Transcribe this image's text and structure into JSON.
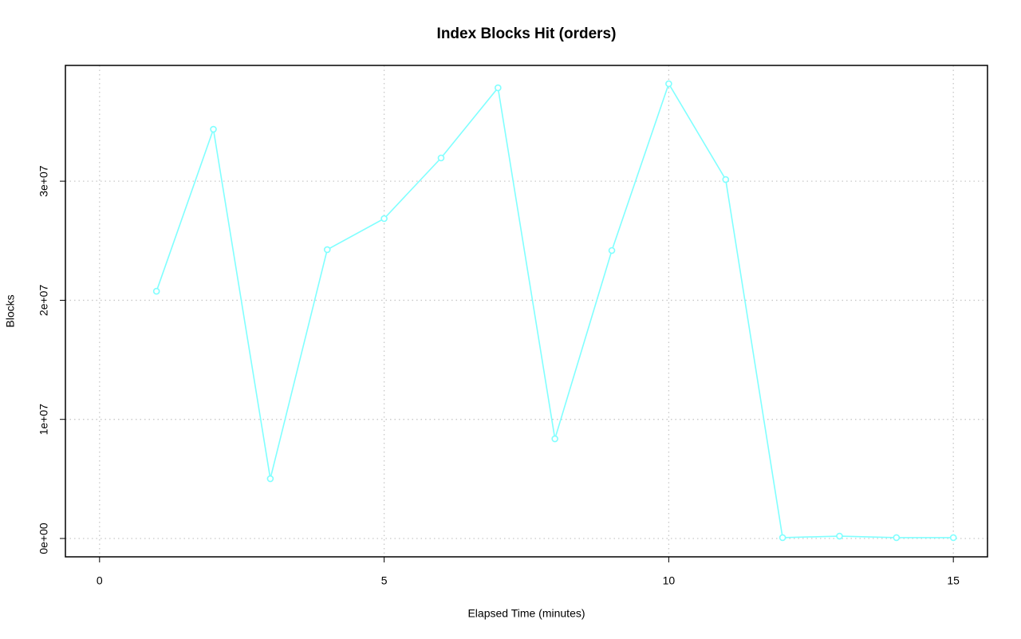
{
  "chart_data": {
    "type": "line",
    "title": "Index Blocks Hit (orders)",
    "x_label": "Elapsed Time (minutes)",
    "y_label": "Blocks",
    "x": [
      1,
      2,
      3,
      4,
      5,
      6,
      7,
      8,
      9,
      10,
      11,
      12,
      13,
      14,
      15
    ],
    "series": [
      {
        "name": "orders",
        "color": "#80ffff",
        "values": [
          20760000,
          34360000,
          5020000,
          24250000,
          26860000,
          31950000,
          37840000,
          8370000,
          24180000,
          38180000,
          30140000,
          70000,
          200000,
          70000,
          70000
        ]
      }
    ],
    "xlim": [
      -0.6,
      15.6
    ],
    "xticks": [
      0,
      5,
      10,
      15
    ],
    "ylim": [
      -1540000,
      39720000
    ],
    "yticks": [
      {
        "value": 0,
        "label": "0e+00"
      },
      {
        "value": 10000000,
        "label": "1e+07"
      },
      {
        "value": 20000000,
        "label": "2e+07"
      },
      {
        "value": 30000000,
        "label": "3e+07"
      }
    ],
    "grid": true
  }
}
